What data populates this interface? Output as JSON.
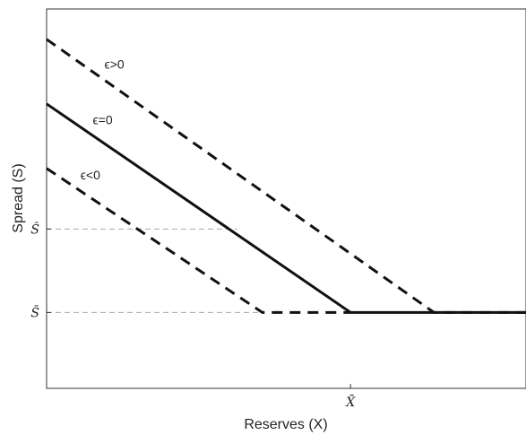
{
  "chart_data": {
    "type": "line",
    "xlabel": "Reserves (X)",
    "ylabel": "Spread (S)",
    "x_ticks": [
      {
        "label": "X̄",
        "x": 0.634
      }
    ],
    "y_ticks": [
      {
        "label": "Ŝ",
        "y": 0.42
      },
      {
        "label": "S̄",
        "y": 0.2
      }
    ],
    "xlim": [
      0,
      1
    ],
    "ylim": [
      0,
      1
    ],
    "grid": false,
    "reference_lines": [
      {
        "y": 0.42,
        "x_end": 0.398,
        "style": "dashed"
      },
      {
        "y": 0.2,
        "x_end": 0.45,
        "style": "dashed"
      }
    ],
    "series": [
      {
        "name": "ϵ>0",
        "style": "dashed",
        "points": [
          [
            0,
            0.92
          ],
          [
            0.808,
            0.2
          ],
          [
            1,
            0.2
          ]
        ]
      },
      {
        "name": "ϵ=0",
        "style": "solid",
        "points": [
          [
            0,
            0.75
          ],
          [
            0.634,
            0.2
          ],
          [
            1,
            0.2
          ]
        ]
      },
      {
        "name": "ϵ<0",
        "style": "dashed",
        "points": [
          [
            0,
            0.58
          ],
          [
            0.45,
            0.2
          ],
          [
            0.634,
            0.2
          ]
        ]
      }
    ],
    "annotations": [
      {
        "text": "ϵ>0",
        "series": 0
      },
      {
        "text": "ϵ=0",
        "series": 1
      },
      {
        "text": "ϵ<0",
        "series": 2
      }
    ]
  }
}
